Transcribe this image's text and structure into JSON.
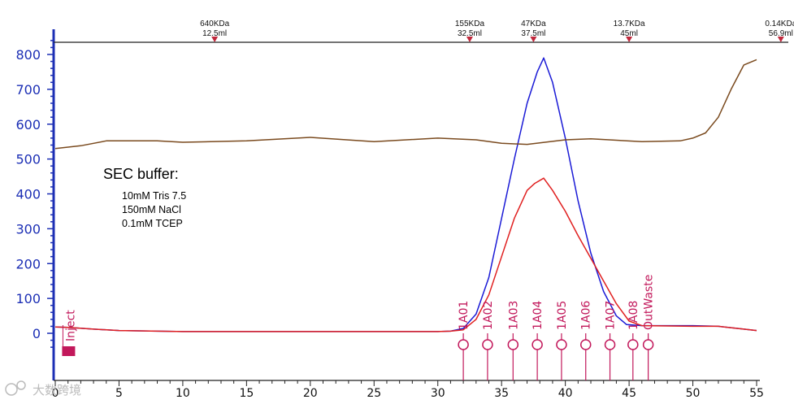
{
  "chart_data": {
    "type": "line",
    "title": "",
    "xlabel": "",
    "ylabel": "",
    "xlim": [
      0,
      55
    ],
    "ylim": [
      -50,
      850
    ],
    "x_ticks": [
      0,
      5,
      10,
      15,
      20,
      25,
      30,
      35,
      40,
      45,
      50,
      55
    ],
    "y_ticks": [
      0,
      100,
      200,
      300,
      400,
      500,
      600,
      700,
      800
    ],
    "grid": false,
    "series": [
      {
        "color": "#1a1ad6",
        "points": [
          [
            0,
            18
          ],
          [
            1,
            17
          ],
          [
            3,
            12
          ],
          [
            5,
            8
          ],
          [
            10,
            5
          ],
          [
            20,
            5
          ],
          [
            30,
            5
          ],
          [
            31,
            6
          ],
          [
            32,
            14
          ],
          [
            33,
            55
          ],
          [
            34,
            160
          ],
          [
            35,
            330
          ],
          [
            36,
            500
          ],
          [
            37,
            660
          ],
          [
            37.8,
            750
          ],
          [
            38.3,
            790
          ],
          [
            39,
            720
          ],
          [
            40,
            560
          ],
          [
            41,
            380
          ],
          [
            42,
            230
          ],
          [
            43,
            120
          ],
          [
            44,
            50
          ],
          [
            44.8,
            25
          ],
          [
            46,
            22
          ],
          [
            50,
            22
          ],
          [
            52,
            20
          ],
          [
            54,
            12
          ],
          [
            55,
            8
          ]
        ]
      },
      {
        "color": "#e02020",
        "points": [
          [
            0,
            18
          ],
          [
            1,
            17
          ],
          [
            3,
            12
          ],
          [
            5,
            8
          ],
          [
            10,
            5
          ],
          [
            20,
            5
          ],
          [
            30,
            5
          ],
          [
            31,
            6
          ],
          [
            32,
            10
          ],
          [
            33,
            40
          ],
          [
            34,
            110
          ],
          [
            35,
            220
          ],
          [
            36,
            330
          ],
          [
            37,
            410
          ],
          [
            37.6,
            430
          ],
          [
            38.3,
            445
          ],
          [
            39,
            410
          ],
          [
            40,
            350
          ],
          [
            41,
            280
          ],
          [
            42,
            215
          ],
          [
            43,
            150
          ],
          [
            44,
            85
          ],
          [
            45,
            35
          ],
          [
            46,
            22
          ],
          [
            50,
            20
          ],
          [
            52,
            20
          ],
          [
            54,
            12
          ],
          [
            55,
            8
          ]
        ]
      },
      {
        "color": "#7a4a1e",
        "points": [
          [
            0,
            530
          ],
          [
            2,
            538
          ],
          [
            4,
            552
          ],
          [
            8,
            552
          ],
          [
            10,
            548
          ],
          [
            15,
            552
          ],
          [
            20,
            562
          ],
          [
            25,
            550
          ],
          [
            30,
            560
          ],
          [
            33,
            555
          ],
          [
            35,
            545
          ],
          [
            37,
            542
          ],
          [
            40,
            555
          ],
          [
            42,
            558
          ],
          [
            46,
            550
          ],
          [
            49,
            552
          ],
          [
            50,
            560
          ],
          [
            51,
            575
          ],
          [
            52,
            620
          ],
          [
            53,
            700
          ],
          [
            54,
            770
          ],
          [
            55,
            785
          ]
        ]
      }
    ],
    "top_markers": [
      {
        "x": 12.5,
        "kda": "640KDa",
        "ml": "12.5ml"
      },
      {
        "x": 32.5,
        "kda": "155KDa",
        "ml": "32.5ml"
      },
      {
        "x": 37.5,
        "kda": "47KDa",
        "ml": "37.5ml"
      },
      {
        "x": 45,
        "kda": "13.7KDa",
        "ml": "45ml"
      },
      {
        "x": 56.9,
        "kda": "0.14KDa",
        "ml": "56.9ml"
      }
    ],
    "fractions": [
      {
        "x": 32.0,
        "label": "1A01"
      },
      {
        "x": 33.9,
        "label": "1A02"
      },
      {
        "x": 35.9,
        "label": "1A03"
      },
      {
        "x": 37.8,
        "label": "1A04"
      },
      {
        "x": 39.7,
        "label": "1A05"
      },
      {
        "x": 41.6,
        "label": "1A06"
      },
      {
        "x": 43.5,
        "label": "1A07"
      },
      {
        "x": 45.3,
        "label": "1A08"
      },
      {
        "x": 46.5,
        "label": "OutWaste"
      }
    ],
    "inject": {
      "x": 0.6,
      "label": "Inject"
    },
    "annotation": {
      "title": "SEC buffer:",
      "lines": [
        "10mM Tris 7.5",
        "150mM NaCl",
        "0.1mM TCEP"
      ]
    }
  },
  "colors": {
    "axis": "#1c2fb5",
    "marker": "#c0283c",
    "fraction": "#c2185b"
  },
  "watermark": "大数跨境"
}
